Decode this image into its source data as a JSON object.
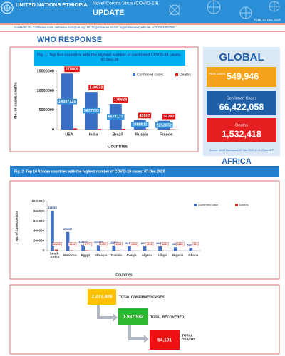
{
  "header": {
    "organization": "UNITED NATIONS ETHIOPIA",
    "subtitle": "Novel Corona Virus (COVID-19)",
    "title": "UPDATE",
    "issue": "#239| 07 Dec 2020"
  },
  "contacts": "Contacts: Dr. Catherine Sozi, catherine.sozi@un.org, Dr. Tugumizemu Victor: tugumizemuv@who.int, +251904055785",
  "section_title": "WHO RESPONSE",
  "global": {
    "title": "GLOBAL",
    "new_cases_label": "New cases",
    "new_cases": "549,946",
    "confirmed_label": "Confirmed Cases",
    "confirmed": "66,422,058",
    "deaths_label": "Deaths",
    "deaths": "1,532,418",
    "source": "Source: WHO Dashboard 07 Dec 2020 @ 01:47pm CET"
  },
  "africa_title": "AFRICA",
  "chart_data": [
    {
      "type": "bar",
      "title": "Fig. 1: Top five countries with the highest number of confirmed COVID-19 cases; 07-Dec-20",
      "y_label": "No. of cases/deaths",
      "x_label": "Countries",
      "categories": [
        "USA",
        "India",
        "Brazil",
        "Russia",
        "France"
      ],
      "series": [
        {
          "name": "Confirmed cases",
          "color": "#3b6fc4",
          "values": [
            14397135,
            9677203,
            6577177,
            2488912,
            2252852
          ]
        },
        {
          "name": "Deaths",
          "color": "#e01010",
          "values": [
            278806,
            140573,
            176628,
            43597,
            54792
          ]
        }
      ],
      "ylim": [
        0,
        15000000
      ],
      "yticks": [
        0,
        5000000,
        10000000,
        15000000
      ],
      "legend": "upper right"
    },
    {
      "type": "bar",
      "title": "Fig. 2: Top 10 African countries with the highest number of COVID-19 cases; 07-Dec-2020",
      "y_label": "No. of cases/Deaths",
      "x_label": "Countries",
      "categories": [
        "South Africa",
        "Morocco",
        "Egypt",
        "Ethiopia",
        "Tunisia",
        "Kenya",
        "Algeria",
        "Libya",
        "Nigeria",
        "Ghana"
      ],
      "series": [
        {
          "name": "Confirmed case",
          "color": "#4472c4",
          "values": [
            814565,
            379657,
            118432,
            113295,
            104002,
            88380,
            88252,
            86580,
            69255,
            52278
          ]
        },
        {
          "name": "Deaths",
          "color": "#c0392b",
          "values": [
            22206,
            6240,
            6771,
            1755,
            3561,
            1526,
            2516,
            1231,
            1180,
            323
          ]
        }
      ],
      "ylim": [
        0,
        1000000
      ],
      "yticks": [
        0,
        200000,
        400000,
        600000,
        800000,
        1000000
      ],
      "legend": "upper right"
    }
  ],
  "ethiopia": {
    "confirmed": "2,271,809",
    "confirmed_label": "TOTAL CONFIRMED CASES",
    "recovered": "1,937,982",
    "recovered_label": "TOTAL RECOVERED",
    "deaths": "54,101",
    "deaths_label": "TOTAL DEATHS"
  }
}
